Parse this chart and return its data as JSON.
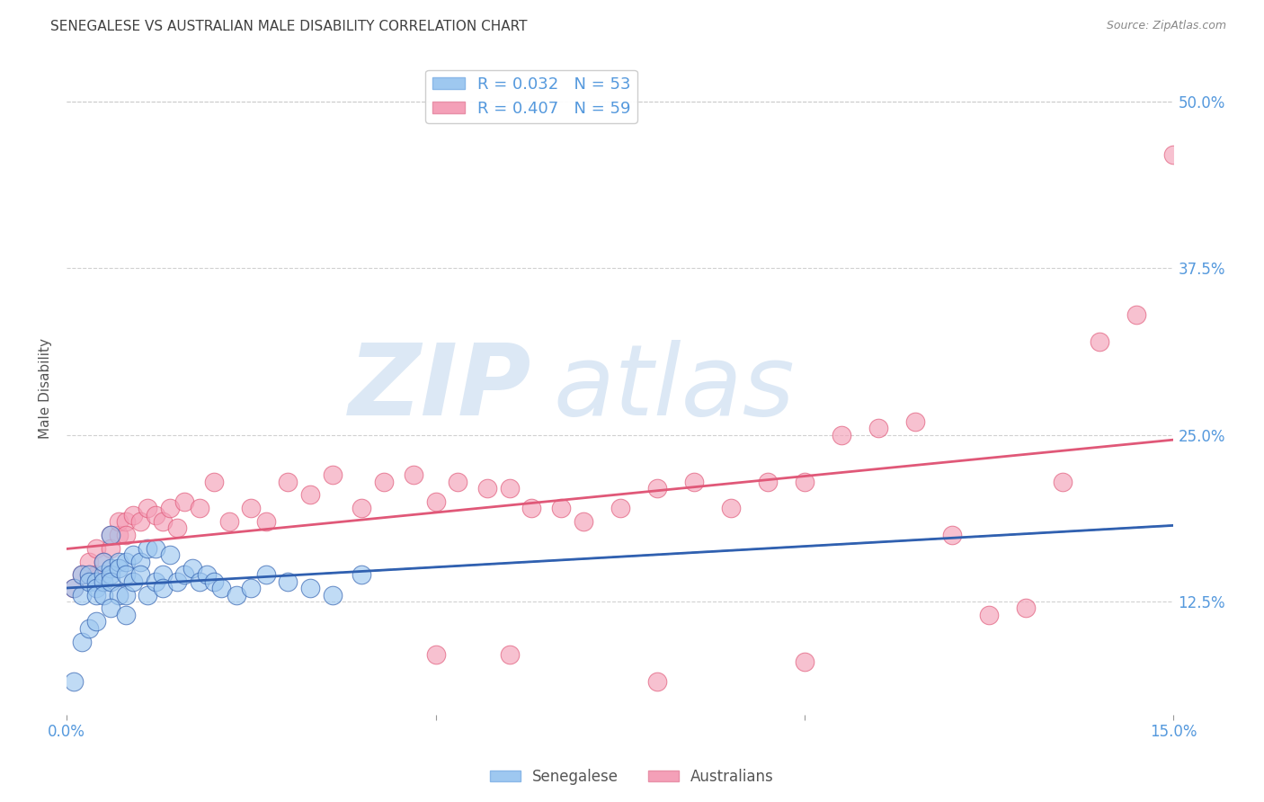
{
  "title": "SENEGALESE VS AUSTRALIAN MALE DISABILITY CORRELATION CHART",
  "source": "Source: ZipAtlas.com",
  "ylabel": "Male Disability",
  "xlim": [
    0.0,
    0.15
  ],
  "ylim": [
    0.04,
    0.53
  ],
  "legend_r1": "R = 0.032",
  "legend_n1": "N = 53",
  "legend_r2": "R = 0.407",
  "legend_n2": "N = 59",
  "color_blue": "#9EC8F0",
  "color_pink": "#F4A0B8",
  "color_line_blue": "#3060B0",
  "color_line_pink": "#E05878",
  "color_dashed": "#90B8D8",
  "watermark_color": "#DCE8F5",
  "background_color": "#FFFFFF",
  "grid_color": "#CCCCCC",
  "title_color": "#404040",
  "source_color": "#888888",
  "tick_label_color": "#5599DD",
  "senegalese_x": [
    0.001,
    0.002,
    0.002,
    0.003,
    0.003,
    0.004,
    0.004,
    0.004,
    0.005,
    0.005,
    0.005,
    0.005,
    0.006,
    0.006,
    0.006,
    0.006,
    0.007,
    0.007,
    0.007,
    0.008,
    0.008,
    0.008,
    0.009,
    0.009,
    0.01,
    0.01,
    0.011,
    0.011,
    0.012,
    0.012,
    0.013,
    0.013,
    0.014,
    0.015,
    0.016,
    0.017,
    0.018,
    0.019,
    0.02,
    0.021,
    0.023,
    0.025,
    0.027,
    0.03,
    0.033,
    0.036,
    0.04,
    0.001,
    0.002,
    0.003,
    0.004,
    0.006,
    0.008
  ],
  "senegalese_y": [
    0.135,
    0.145,
    0.13,
    0.145,
    0.14,
    0.14,
    0.135,
    0.13,
    0.145,
    0.14,
    0.155,
    0.13,
    0.15,
    0.145,
    0.14,
    0.175,
    0.155,
    0.15,
    0.13,
    0.155,
    0.145,
    0.13,
    0.16,
    0.14,
    0.155,
    0.145,
    0.165,
    0.13,
    0.165,
    0.14,
    0.145,
    0.135,
    0.16,
    0.14,
    0.145,
    0.15,
    0.14,
    0.145,
    0.14,
    0.135,
    0.13,
    0.135,
    0.145,
    0.14,
    0.135,
    0.13,
    0.145,
    0.065,
    0.095,
    0.105,
    0.11,
    0.12,
    0.115
  ],
  "australians_x": [
    0.001,
    0.002,
    0.003,
    0.003,
    0.004,
    0.004,
    0.005,
    0.006,
    0.006,
    0.007,
    0.007,
    0.008,
    0.008,
    0.009,
    0.01,
    0.011,
    0.012,
    0.013,
    0.014,
    0.015,
    0.016,
    0.018,
    0.02,
    0.022,
    0.025,
    0.027,
    0.03,
    0.033,
    0.036,
    0.04,
    0.043,
    0.047,
    0.05,
    0.053,
    0.057,
    0.06,
    0.063,
    0.067,
    0.07,
    0.075,
    0.08,
    0.085,
    0.09,
    0.095,
    0.1,
    0.105,
    0.11,
    0.115,
    0.12,
    0.125,
    0.13,
    0.135,
    0.14,
    0.145,
    0.15,
    0.1,
    0.08,
    0.06,
    0.05
  ],
  "australians_y": [
    0.135,
    0.145,
    0.145,
    0.155,
    0.145,
    0.165,
    0.155,
    0.175,
    0.165,
    0.175,
    0.185,
    0.185,
    0.175,
    0.19,
    0.185,
    0.195,
    0.19,
    0.185,
    0.195,
    0.18,
    0.2,
    0.195,
    0.215,
    0.185,
    0.195,
    0.185,
    0.215,
    0.205,
    0.22,
    0.195,
    0.215,
    0.22,
    0.2,
    0.215,
    0.21,
    0.21,
    0.195,
    0.195,
    0.185,
    0.195,
    0.21,
    0.215,
    0.195,
    0.215,
    0.215,
    0.25,
    0.255,
    0.26,
    0.175,
    0.115,
    0.12,
    0.215,
    0.32,
    0.34,
    0.46,
    0.08,
    0.065,
    0.085,
    0.085
  ]
}
